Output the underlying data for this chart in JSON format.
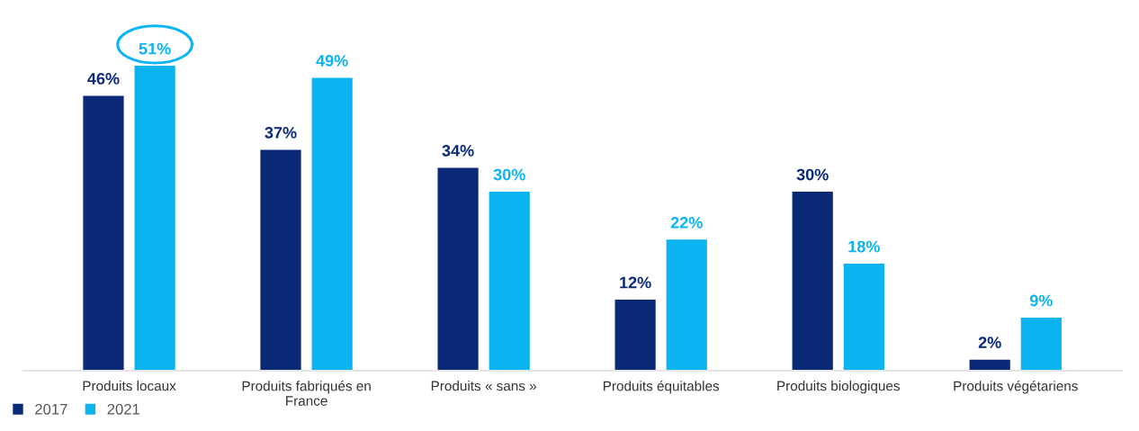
{
  "chart_data": {
    "type": "bar",
    "categories": [
      "Produits locaux",
      "Produits fabriqués en France",
      "Produits « sans »",
      "Produits équitables",
      "Produits biologiques",
      "Produits végétariens"
    ],
    "series": [
      {
        "name": "2017",
        "color": "#0a2a78",
        "values": [
          46,
          37,
          34,
          12,
          30,
          2
        ],
        "value_labels": [
          "46%",
          "37%",
          "34%",
          "12%",
          "30%",
          "2%"
        ]
      },
      {
        "name": "2021",
        "color": "#0ab4f0",
        "values": [
          51,
          49,
          30,
          22,
          18,
          9
        ],
        "value_labels": [
          "51%",
          "49%",
          "30%",
          "22%",
          "18%",
          "9%"
        ]
      }
    ],
    "grid": false,
    "legend": "bottom left",
    "tick_labels": "x"
  }
}
